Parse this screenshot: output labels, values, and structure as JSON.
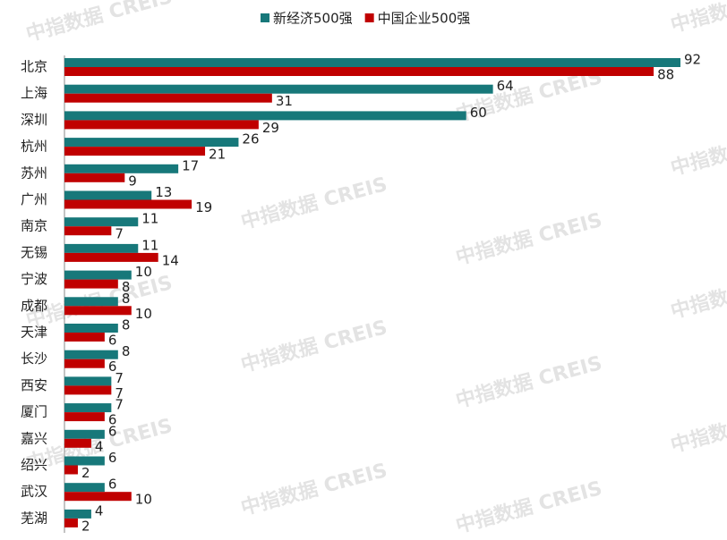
{
  "chart_data": {
    "type": "bar",
    "orientation": "horizontal",
    "watermark": "中指数据 CREIS",
    "categories": [
      "北京",
      "上海",
      "深圳",
      "杭州",
      "苏州",
      "广州",
      "南京",
      "无锡",
      "宁波",
      "成都",
      "天津",
      "长沙",
      "西安",
      "厦门",
      "嘉兴",
      "绍兴",
      "武汉",
      "芜湖"
    ],
    "series": [
      {
        "name": "新经济500强",
        "color": "#17787a",
        "values": [
          92,
          64,
          60,
          26,
          17,
          13,
          11,
          11,
          10,
          8,
          8,
          8,
          7,
          7,
          6,
          6,
          6,
          4
        ]
      },
      {
        "name": "中国企业500强",
        "color": "#c00000",
        "values": [
          88,
          31,
          29,
          21,
          9,
          19,
          7,
          14,
          8,
          10,
          6,
          6,
          7,
          6,
          4,
          2,
          10,
          2
        ]
      }
    ]
  }
}
